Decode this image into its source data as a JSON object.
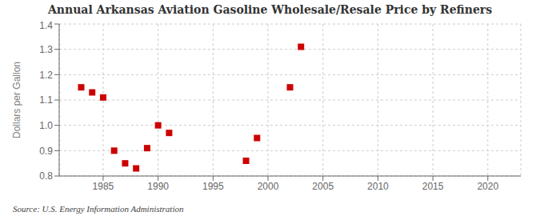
{
  "chart_data": {
    "type": "scatter",
    "title": "Annual Arkansas Aviation Gasoline Wholesale/Resale Price by Refiners",
    "y_label": "Dollars per Gallon",
    "annotations": [
      "Source: U.S. Energy Information Administration"
    ],
    "color": "#cc0000",
    "marker": "square",
    "x": [
      1983,
      1984,
      1985,
      1986,
      1987,
      1988,
      1989,
      1990,
      1991,
      1998,
      1999,
      2002,
      2003
    ],
    "values": [
      1.15,
      1.13,
      1.11,
      0.9,
      0.85,
      0.83,
      0.91,
      1.0,
      0.97,
      0.86,
      0.95,
      1.15,
      1.31
    ],
    "xlim": [
      1981,
      2023
    ],
    "ylim": [
      0.8,
      1.4
    ],
    "xticks": [
      1985,
      1990,
      1995,
      2000,
      2005,
      2010,
      2015,
      2020
    ],
    "yticks": [
      0.8,
      0.9,
      {
        "value": 1.0,
        "label": "1.0"
      },
      1.1,
      1.2,
      1.3,
      1.4
    ],
    "grid": true
  }
}
